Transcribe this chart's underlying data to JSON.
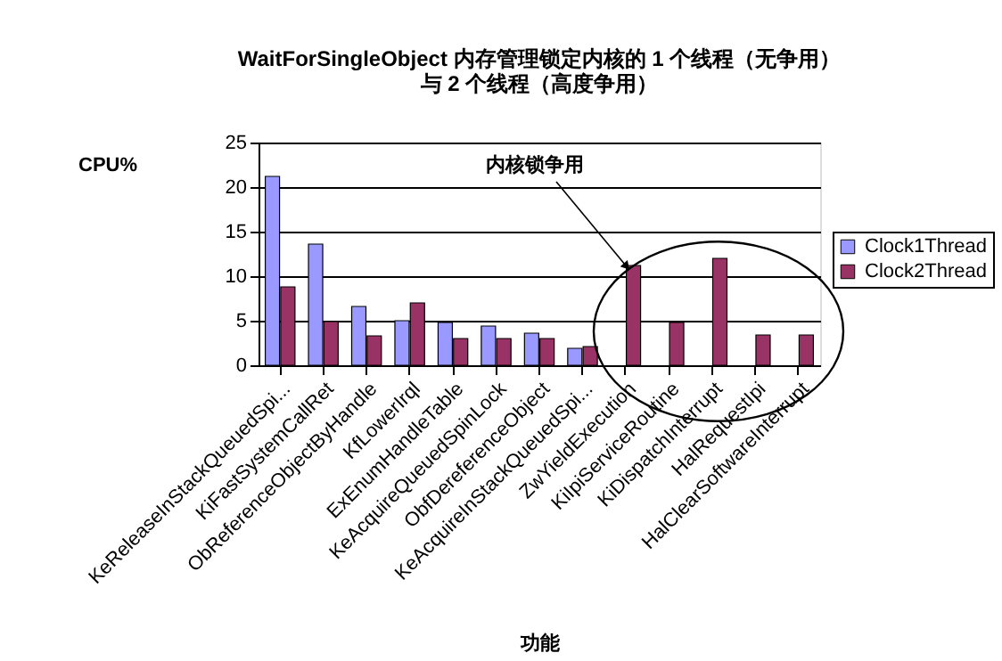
{
  "chart_data": {
    "type": "bar",
    "title": [
      "WaitForSingleObject 内存管理锁定内核的 1 个线程（无争用）",
      "与 2 个线程（高度争用）"
    ],
    "xlabel": "功能",
    "ylabel": "CPU%",
    "categories": [
      "KeReleaseInStackQueuedSpi...",
      "KiFastSystemCallRet",
      "ObReferenceObjectByHandle",
      "KfLowerIrql",
      "ExEnumHandleTable",
      "KeAcquireQueuedSpinLock",
      "ObfDereferenceObject",
      "KeAcquireInStackQueuedSpi...",
      "ZwYieldExecution",
      "KiIpiServiceRoutine",
      "KiDispatchInterrupt",
      "HalRequestIpi",
      "HalClearSoftwareInterrupt"
    ],
    "series": [
      {
        "name": "Clock1Thread",
        "color": "#9999ff",
        "values": [
          21.2,
          13.6,
          6.6,
          5.0,
          4.8,
          4.4,
          3.6,
          1.9,
          null,
          null,
          null,
          null,
          null
        ]
      },
      {
        "name": "Clock2Thread",
        "color": "#993366",
        "values": [
          8.8,
          4.9,
          3.3,
          7.0,
          3.0,
          3.0,
          3.0,
          2.1,
          11.2,
          4.8,
          12.0,
          3.4,
          3.4
        ]
      }
    ],
    "ylim": [
      0,
      25
    ],
    "yticks": [
      0,
      5,
      10,
      15,
      20,
      25
    ],
    "grid": "y",
    "legend": "right",
    "annotations": [
      {
        "text": "内核锁争用",
        "x": "ZwYieldExecution",
        "y": 11.2
      }
    ]
  }
}
